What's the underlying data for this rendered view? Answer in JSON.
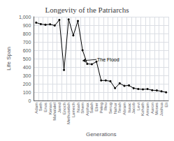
{
  "chart_data": {
    "type": "line",
    "title": "Longevity of the Patriarchs",
    "xlabel": "Generations",
    "ylabel": "Life Span",
    "categories": [
      "Adam",
      "Seth",
      "Enos",
      "Kenan",
      "Mahalalel",
      "Jared",
      "Enoch",
      "Methuselah",
      "Lamech",
      "Noah",
      "Shem",
      "Arphax",
      "Salah",
      "Eber",
      "Peleg",
      "Reu",
      "Serug",
      "Nahor",
      "Terah",
      "Abram",
      "Isaac",
      "Jacob",
      "Levi",
      "Kohath",
      "Amram",
      "Aaron",
      "Moses",
      "Joshua",
      "Eli"
    ],
    "values": [
      930,
      912,
      905,
      910,
      895,
      962,
      365,
      969,
      777,
      950,
      600,
      438,
      433,
      464,
      239,
      239,
      230,
      148,
      205,
      175,
      180,
      147,
      137,
      133,
      137,
      123,
      120,
      110,
      98
    ],
    "color": "#000000",
    "marker": "circle",
    "ylim": [
      0,
      1000
    ],
    "yticks": [
      0,
      100,
      200,
      300,
      400,
      500,
      600,
      700,
      800,
      900,
      1000
    ],
    "grid": true,
    "annotations": [
      {
        "text": "The Flood",
        "x": "Eber",
        "y": 490,
        "arrow_x": "Shem",
        "arrow_y": 475
      }
    ]
  }
}
